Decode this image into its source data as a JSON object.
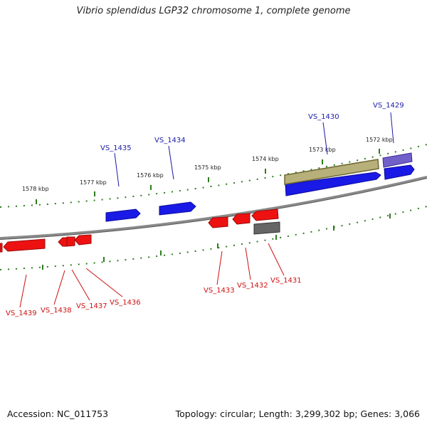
{
  "title": "Vibrio splendidus LGP32 chromosome 1, complete genome",
  "footer": {
    "accession": "Accession: NC_011753",
    "summary": "Topology: circular; Length: 3,299,302 bp; Genes: 3,066"
  },
  "colors": {
    "backbone": "#8a8a8a",
    "tick": "#2e7d1e",
    "forward_gene": "#1a1ae6",
    "reverse_gene": "#ee1111",
    "rna_gene": "#b8b07a",
    "other_gene": "#7060c8",
    "pseudo_gene": "#666666",
    "label_forward": "#1a1aa8",
    "label_reverse": "#cc1111"
  },
  "ruler_labels": [
    "1572 kbp",
    "1573 kbp",
    "1574 kbp",
    "1575 kbp",
    "1576 kbp",
    "1577 kbp",
    "1578 kbp"
  ],
  "gene_labels": {
    "forward": [
      "VS_1429",
      "VS_1430",
      "VS_1434",
      "VS_1435"
    ],
    "reverse": [
      "VS_1431",
      "VS_1432",
      "VS_1433",
      "VS_1436",
      "VS_1437",
      "VS_1438",
      "VS_1439"
    ]
  }
}
